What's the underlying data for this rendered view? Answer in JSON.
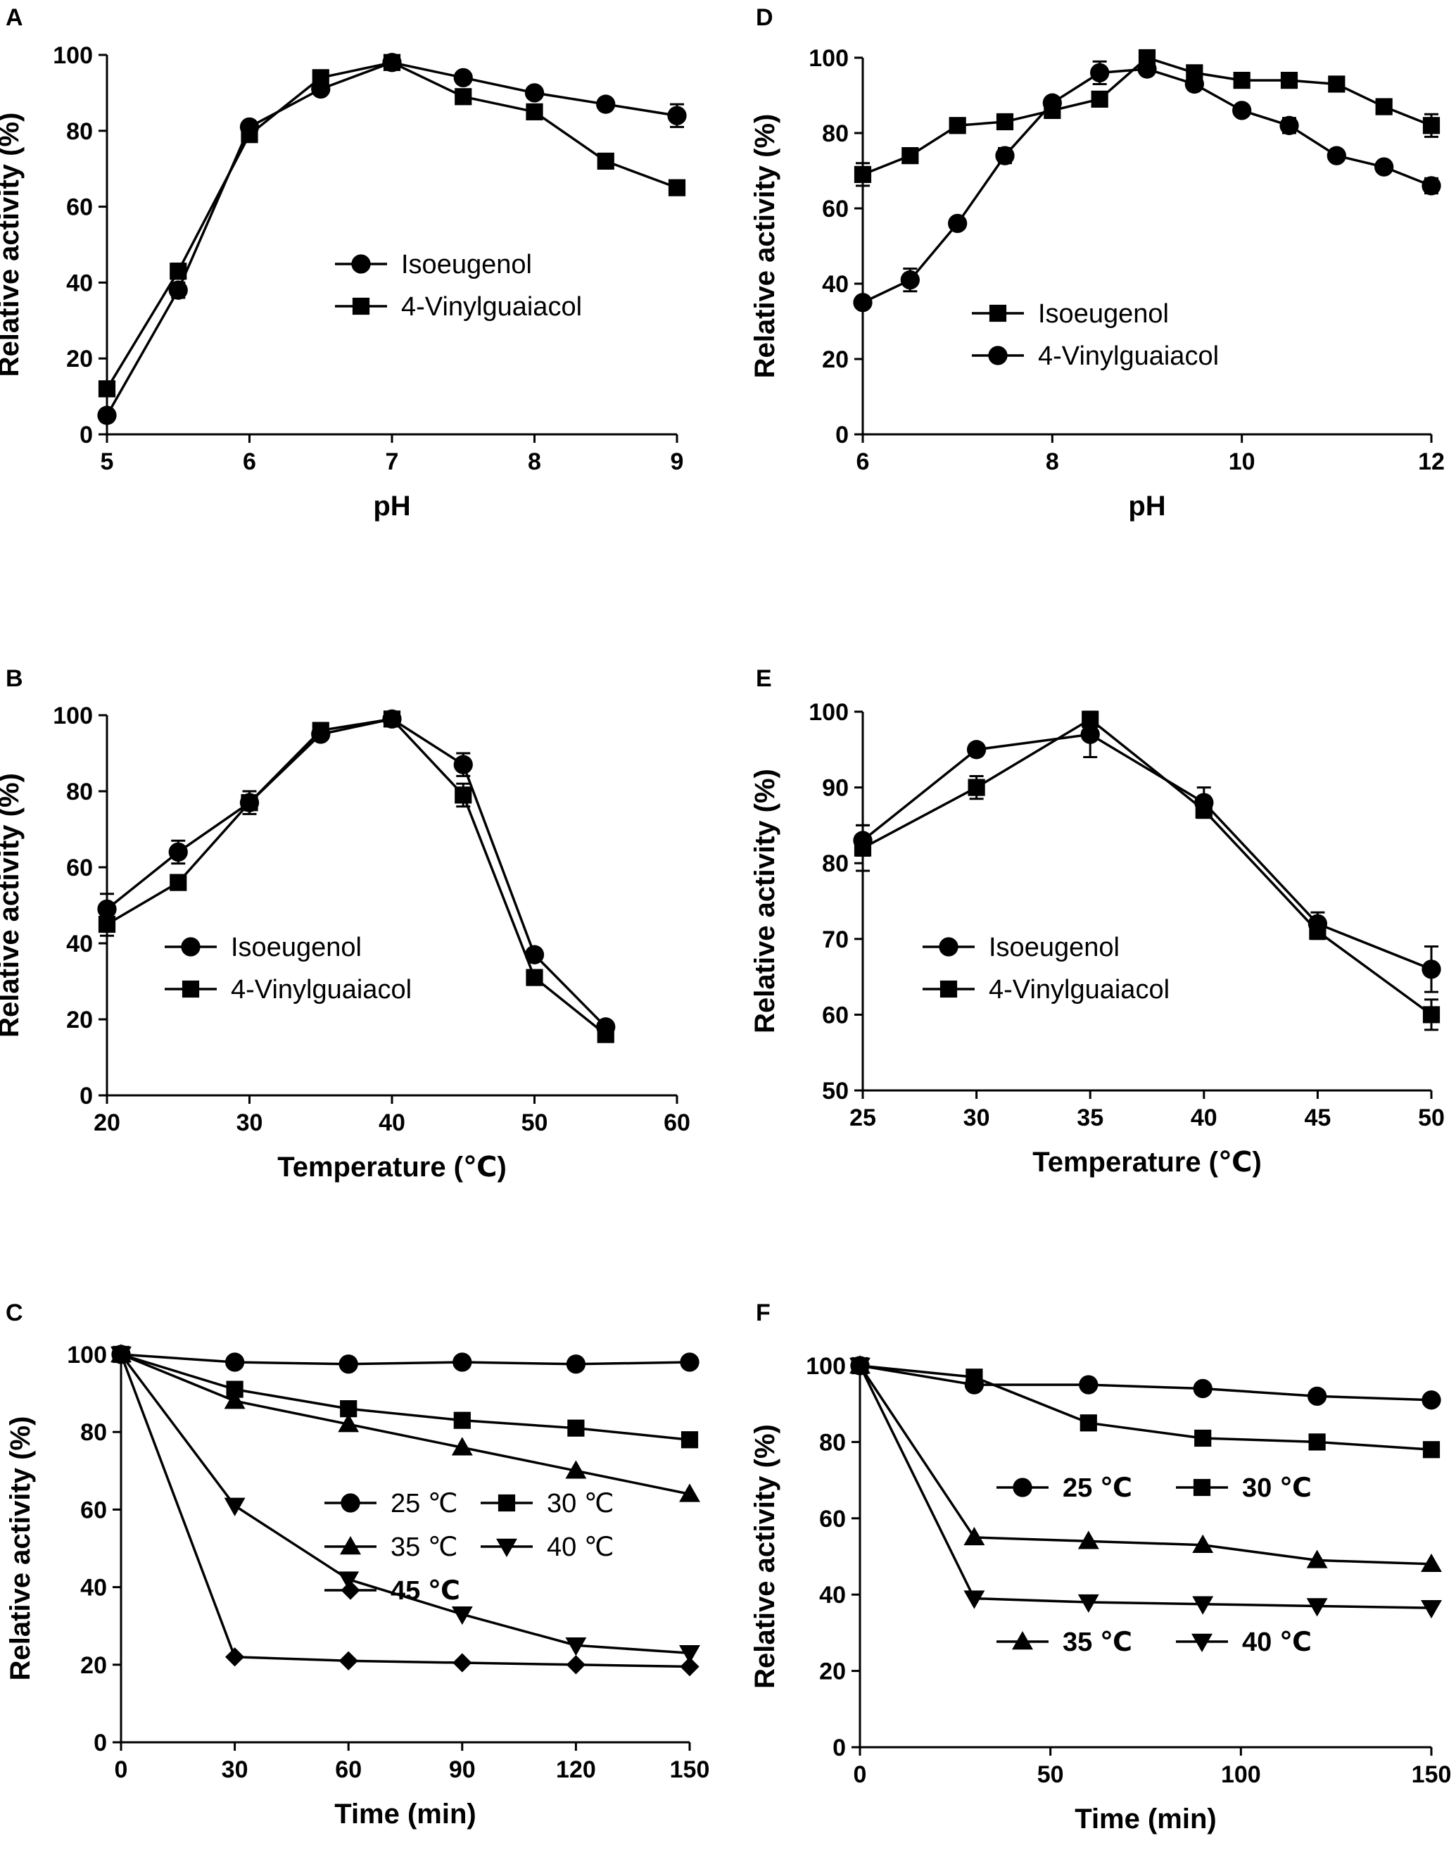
{
  "figure_title": "",
  "chart_data": [
    {
      "panel": "A",
      "type": "line",
      "xlabel": "pH",
      "ylabel": "Relative activity (%)",
      "xlim": [
        5,
        9
      ],
      "ylim": [
        0,
        100
      ],
      "xticks": [
        5,
        6,
        7,
        8,
        9
      ],
      "yticks": [
        0,
        20,
        40,
        60,
        80,
        100
      ],
      "legend_position": "center-right",
      "series": [
        {
          "name": "Isoeugenol",
          "marker": "circle",
          "x": [
            5,
            5.5,
            6,
            6.5,
            7,
            7.5,
            8,
            8.5,
            9
          ],
          "y": [
            5,
            38,
            81,
            91,
            98,
            94,
            90,
            87,
            84
          ],
          "err": [
            0,
            2,
            1,
            1,
            1,
            1,
            1,
            1,
            3
          ]
        },
        {
          "name": "4-Vinylguaiacol",
          "marker": "square",
          "x": [
            5,
            5.5,
            6,
            6.5,
            7,
            7.5,
            8,
            8.5,
            9
          ],
          "y": [
            12,
            43,
            79,
            94,
            98,
            89,
            85,
            72,
            65
          ],
          "err": [
            1,
            2,
            1,
            1,
            1,
            1,
            1,
            1,
            1
          ]
        }
      ]
    },
    {
      "panel": "D",
      "type": "line",
      "xlabel": "pH",
      "ylabel": "Relative activity (%)",
      "xlim": [
        6,
        12
      ],
      "ylim": [
        0,
        100
      ],
      "xticks": [
        6,
        8,
        10,
        12
      ],
      "yticks": [
        0,
        20,
        40,
        60,
        80,
        100
      ],
      "legend_position": "lower-left",
      "series": [
        {
          "name": "Isoeugenol",
          "marker": "square",
          "x": [
            6,
            6.5,
            7,
            7.5,
            8,
            8.5,
            9,
            9.5,
            10,
            10.5,
            11,
            11.5,
            12
          ],
          "y": [
            69,
            74,
            82,
            83,
            86,
            89,
            100,
            96,
            94,
            94,
            93,
            87,
            82
          ],
          "err": [
            3,
            1,
            1,
            1,
            1,
            1,
            1,
            1,
            1,
            1,
            1,
            1,
            3
          ]
        },
        {
          "name": "4-Vinylguaiacol",
          "marker": "circle",
          "x": [
            6,
            6.5,
            7,
            7.5,
            8,
            8.5,
            9,
            9.5,
            10,
            10.5,
            11,
            11.5,
            12
          ],
          "y": [
            35,
            41,
            56,
            74,
            88,
            96,
            97,
            93,
            86,
            82,
            74,
            71,
            66
          ],
          "err": [
            1,
            3,
            1,
            2,
            1,
            3,
            1,
            1,
            1,
            2,
            1,
            1,
            2
          ]
        }
      ]
    },
    {
      "panel": "B",
      "type": "line",
      "xlabel": "Temperature (℃)",
      "ylabel": "Relative activity (%)",
      "xlim": [
        20,
        60
      ],
      "ylim": [
        0,
        100
      ],
      "xticks": [
        20,
        30,
        40,
        50,
        60
      ],
      "yticks": [
        0,
        20,
        40,
        60,
        80,
        100
      ],
      "legend_position": "center-left",
      "series": [
        {
          "name": "Isoeugenol",
          "marker": "circle",
          "x": [
            20,
            25,
            30,
            35,
            40,
            45,
            50,
            55
          ],
          "y": [
            49,
            64,
            77,
            95,
            99,
            87,
            37,
            18
          ],
          "err": [
            4,
            3,
            1,
            1,
            1,
            3,
            1,
            1
          ]
        },
        {
          "name": "4-Vinylguaiacol",
          "marker": "square",
          "x": [
            20,
            25,
            30,
            35,
            40,
            45,
            50,
            55
          ],
          "y": [
            45,
            56,
            77,
            96,
            99,
            79,
            31,
            16
          ],
          "err": [
            3,
            1,
            3,
            1,
            1,
            3,
            1,
            1
          ]
        }
      ]
    },
    {
      "panel": "E",
      "type": "line",
      "xlabel": "Temperature (℃)",
      "ylabel": "Relative activity (%)",
      "xlim": [
        25,
        50
      ],
      "ylim": [
        50,
        100
      ],
      "xticks": [
        25,
        30,
        35,
        40,
        45,
        50
      ],
      "yticks": [
        50,
        60,
        70,
        80,
        90,
        100
      ],
      "legend_position": "center-left",
      "series": [
        {
          "name": "Isoeugenol",
          "marker": "circle",
          "x": [
            25,
            30,
            35,
            40,
            45,
            50
          ],
          "y": [
            83,
            95,
            97,
            88,
            72,
            66
          ],
          "err": [
            2,
            0.5,
            3,
            2,
            1.5,
            3
          ]
        },
        {
          "name": "4-Vinylguaiacol",
          "marker": "square",
          "x": [
            25,
            30,
            35,
            40,
            45,
            50
          ],
          "y": [
            82,
            90,
            99,
            87,
            71,
            60
          ],
          "err": [
            3,
            1.5,
            1,
            1,
            1,
            2
          ]
        }
      ]
    },
    {
      "panel": "C",
      "type": "line",
      "xlabel": "Time (min)",
      "ylabel": "Relative activity (%)",
      "xlim": [
        0,
        150
      ],
      "ylim": [
        0,
        100
      ],
      "xticks": [
        0,
        30,
        60,
        90,
        120,
        150
      ],
      "yticks": [
        0,
        20,
        40,
        60,
        80,
        100
      ],
      "legend_position": "center-right",
      "series": [
        {
          "name": "25 ℃",
          "marker": "circle",
          "x": [
            0,
            30,
            60,
            90,
            120,
            150
          ],
          "y": [
            100,
            98,
            97.5,
            98,
            97.5,
            98
          ]
        },
        {
          "name": "30 ℃",
          "marker": "square",
          "x": [
            0,
            30,
            60,
            90,
            120,
            150
          ],
          "y": [
            100,
            91,
            86,
            83,
            81,
            78
          ]
        },
        {
          "name": "35 ℃",
          "marker": "triangle-up",
          "x": [
            0,
            30,
            60,
            90,
            120,
            150
          ],
          "y": [
            100,
            88,
            82,
            76,
            70,
            64
          ]
        },
        {
          "name": "40 ℃",
          "marker": "triangle-down",
          "x": [
            0,
            30,
            60,
            90,
            120,
            150
          ],
          "y": [
            100,
            61,
            42,
            33,
            25,
            23
          ]
        },
        {
          "name": "45 ℃",
          "marker": "diamond",
          "x": [
            0,
            30,
            60,
            90,
            120,
            150
          ],
          "y": [
            100,
            22,
            21,
            20.5,
            20,
            19.5
          ]
        }
      ]
    },
    {
      "panel": "F",
      "type": "line",
      "xlabel": "Time (min)",
      "ylabel": "Relative activity (%)",
      "xlim": [
        0,
        150
      ],
      "ylim": [
        0,
        100
      ],
      "xticks": [
        0,
        50,
        100,
        150
      ],
      "yticks": [
        0,
        20,
        40,
        60,
        80,
        100
      ],
      "legend_position": "center",
      "series": [
        {
          "name": "25 ℃",
          "marker": "circle",
          "x": [
            0,
            30,
            60,
            90,
            120,
            150
          ],
          "y": [
            100,
            95,
            95,
            94,
            92,
            91
          ]
        },
        {
          "name": "30 ℃",
          "marker": "square",
          "x": [
            0,
            30,
            60,
            90,
            120,
            150
          ],
          "y": [
            100,
            97,
            85,
            81,
            80,
            78
          ]
        },
        {
          "name": "35 ℃",
          "marker": "triangle-up",
          "x": [
            0,
            30,
            60,
            90,
            120,
            150
          ],
          "y": [
            100,
            55,
            54,
            53,
            49,
            48
          ]
        },
        {
          "name": "40 ℃",
          "marker": "triangle-down",
          "x": [
            0,
            30,
            60,
            90,
            120,
            150
          ],
          "y": [
            100,
            39,
            38,
            37.5,
            37,
            36.5
          ]
        }
      ]
    }
  ]
}
